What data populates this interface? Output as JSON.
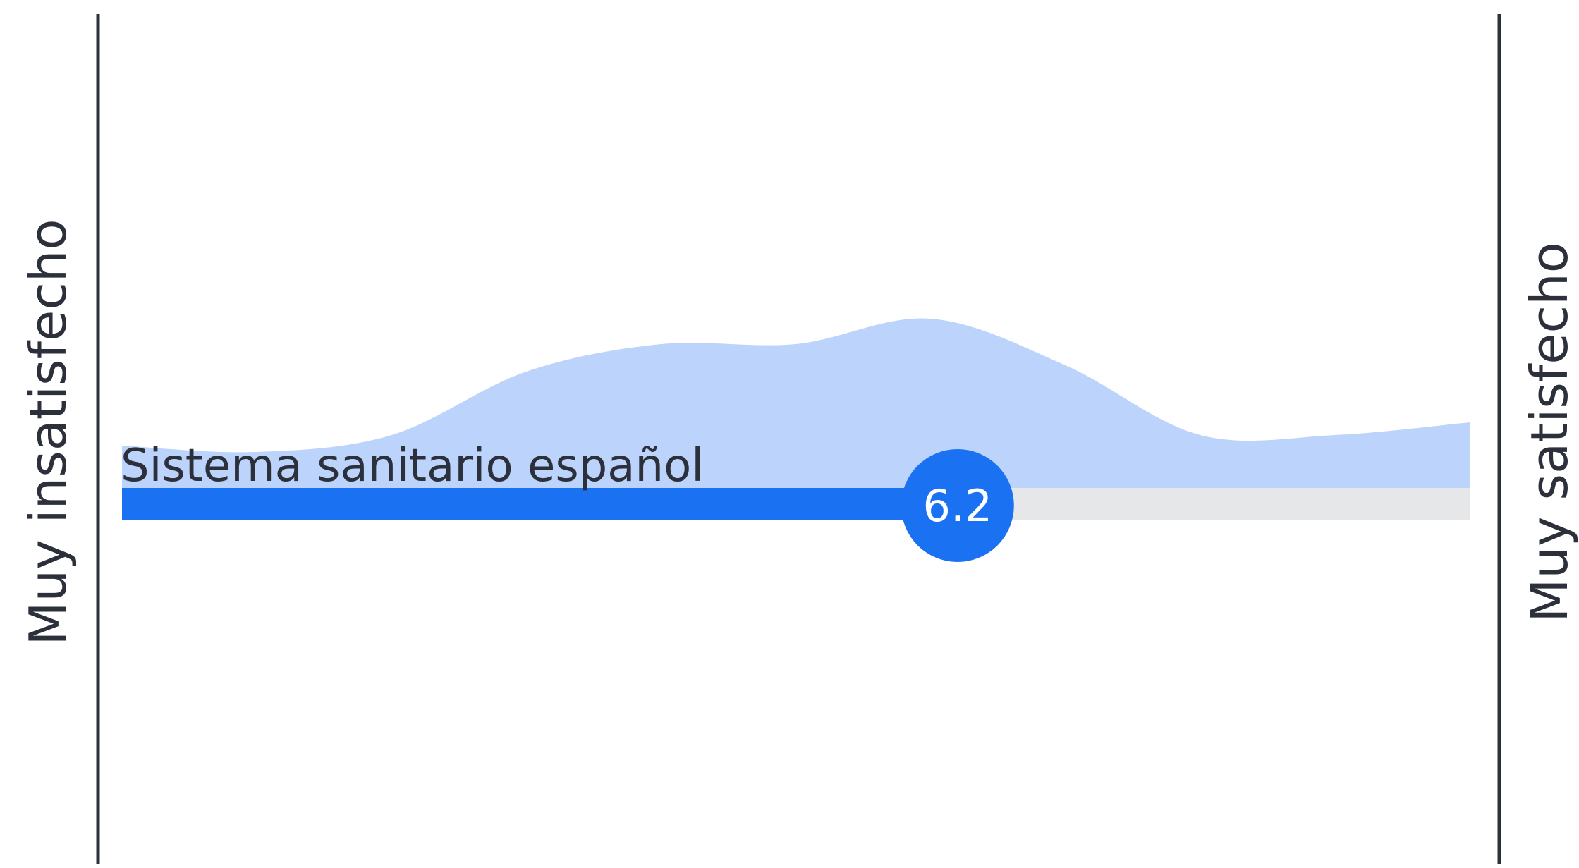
{
  "chart_data": {
    "type": "area",
    "scale": {
      "min": 0,
      "max": 10
    },
    "left_label": "Muy insatisfecho",
    "right_label": "Muy satisfecho",
    "item": {
      "label": "Sistema sanitario español",
      "value": 6.2,
      "value_label": "6.2"
    },
    "distribution": {
      "x": [
        0,
        1,
        2,
        3,
        4,
        5,
        6,
        7,
        8,
        9,
        10
      ],
      "y": [
        0.2,
        0.17,
        0.25,
        0.55,
        0.68,
        0.68,
        0.8,
        0.58,
        0.25,
        0.25,
        0.31
      ]
    },
    "colors": {
      "distribution_fill": "#bcd3fb",
      "bar_fill": "#1a72f3",
      "track_fill": "#e6e7e9",
      "marker_text": "#ffffff",
      "axis_line": "#2b303b"
    }
  }
}
